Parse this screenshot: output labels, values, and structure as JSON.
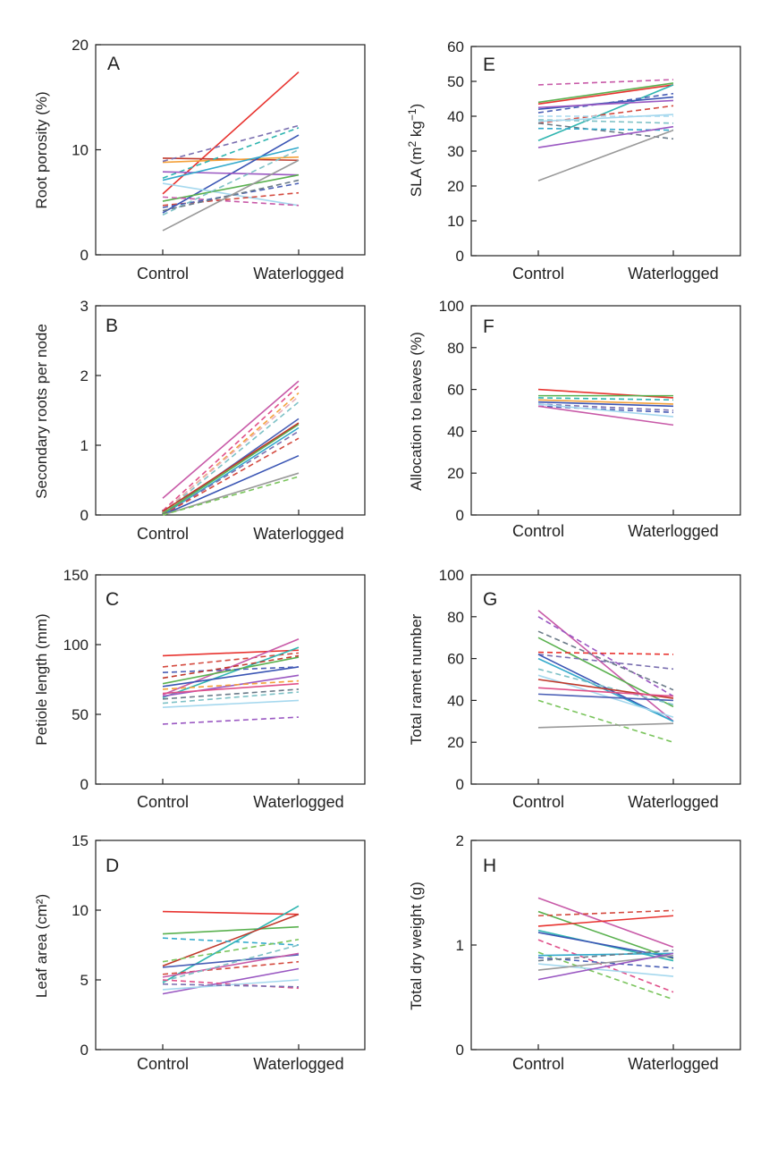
{
  "chart_data": [
    {
      "id": "A",
      "type": "line",
      "panel_label": "A",
      "ylabel": "Root porosity (%)",
      "categories": [
        "Control",
        "Waterlogged"
      ],
      "ylim": [
        0,
        20
      ],
      "yticks": [
        0,
        10,
        20
      ],
      "series": [
        {
          "color": "#e8332f",
          "dash": false,
          "values": [
            5.8,
            17.4
          ]
        },
        {
          "color": "#c0392b",
          "dash": false,
          "values": [
            9.2,
            9.0
          ]
        },
        {
          "color": "#f4a13a",
          "dash": false,
          "values": [
            8.8,
            9.3
          ]
        },
        {
          "color": "#7a6fb0",
          "dash": true,
          "values": [
            8.9,
            12.3
          ]
        },
        {
          "color": "#2fb5b0",
          "dash": true,
          "values": [
            7.3,
            12.1
          ]
        },
        {
          "color": "#3a55b4",
          "dash": false,
          "values": [
            4.0,
            11.4
          ]
        },
        {
          "color": "#9a58c2",
          "dash": false,
          "values": [
            7.9,
            7.6
          ]
        },
        {
          "color": "#33aacc",
          "dash": false,
          "values": [
            7.1,
            10.2
          ]
        },
        {
          "color": "#a5d8ee",
          "dash": false,
          "values": [
            6.8,
            4.7
          ]
        },
        {
          "color": "#5ab14f",
          "dash": false,
          "values": [
            5.1,
            7.6
          ]
        },
        {
          "color": "#c85aa8",
          "dash": true,
          "values": [
            5.5,
            4.7
          ]
        },
        {
          "color": "#d44a3f",
          "dash": true,
          "values": [
            4.7,
            5.9
          ]
        },
        {
          "color": "#4a5fb6",
          "dash": true,
          "values": [
            4.5,
            6.8
          ]
        },
        {
          "color": "#7dc1c6",
          "dash": true,
          "values": [
            3.8,
            10.0
          ]
        },
        {
          "color": "#6a7a88",
          "dash": true,
          "values": [
            4.2,
            7.1
          ]
        },
        {
          "color": "#999999",
          "dash": false,
          "values": [
            2.3,
            9.0
          ]
        }
      ]
    },
    {
      "id": "B",
      "type": "line",
      "panel_label": "B",
      "ylabel": "Secondary roots per node",
      "categories": [
        "Control",
        "Waterlogged"
      ],
      "ylim": [
        0,
        3
      ],
      "yticks": [
        0,
        1,
        2,
        3
      ],
      "series": [
        {
          "color": "#c85aa8",
          "dash": false,
          "values": [
            0.24,
            1.92
          ]
        },
        {
          "color": "#e0508a",
          "dash": true,
          "values": [
            0.06,
            1.85
          ]
        },
        {
          "color": "#f4a13a",
          "dash": true,
          "values": [
            0.03,
            1.75
          ]
        },
        {
          "color": "#e8b0ba",
          "dash": true,
          "values": [
            0.04,
            1.7
          ]
        },
        {
          "color": "#7dc1c6",
          "dash": true,
          "values": [
            0.02,
            1.62
          ]
        },
        {
          "color": "#4a5fb6",
          "dash": false,
          "values": [
            0.01,
            1.38
          ]
        },
        {
          "color": "#33aacc",
          "dash": false,
          "values": [
            0.0,
            1.25
          ]
        },
        {
          "color": "#5ab14f",
          "dash": false,
          "values": [
            0.02,
            1.3
          ]
        },
        {
          "color": "#c0392b",
          "dash": false,
          "values": [
            0.05,
            1.32
          ]
        },
        {
          "color": "#7a6fb0",
          "dash": true,
          "values": [
            0.0,
            1.2
          ]
        },
        {
          "color": "#d44a3f",
          "dash": true,
          "values": [
            0.0,
            1.1
          ]
        },
        {
          "color": "#3a55b4",
          "dash": false,
          "values": [
            0.0,
            0.85
          ]
        },
        {
          "color": "#999999",
          "dash": false,
          "values": [
            0.0,
            0.6
          ]
        },
        {
          "color": "#7ac45c",
          "dash": true,
          "values": [
            0.0,
            0.55
          ]
        }
      ]
    },
    {
      "id": "C",
      "type": "line",
      "panel_label": "C",
      "ylabel": "Petiole length (mm)",
      "categories": [
        "Control",
        "Waterlogged"
      ],
      "ylim": [
        0,
        150
      ],
      "yticks": [
        0,
        50,
        100,
        150
      ],
      "series": [
        {
          "color": "#e8332f",
          "dash": false,
          "values": [
            92,
            96
          ]
        },
        {
          "color": "#d44a3f",
          "dash": true,
          "values": [
            84,
            94
          ]
        },
        {
          "color": "#c85aa8",
          "dash": false,
          "values": [
            64,
            104
          ]
        },
        {
          "color": "#2fb5b0",
          "dash": false,
          "values": [
            62,
            98
          ]
        },
        {
          "color": "#5ab14f",
          "dash": false,
          "values": [
            72,
            91
          ]
        },
        {
          "color": "#3a55b4",
          "dash": false,
          "values": [
            70,
            84
          ]
        },
        {
          "color": "#4a5fb6",
          "dash": true,
          "values": [
            80,
            84
          ]
        },
        {
          "color": "#c0392b",
          "dash": true,
          "values": [
            76,
            92
          ]
        },
        {
          "color": "#9a58c2",
          "dash": false,
          "values": [
            63,
            78
          ]
        },
        {
          "color": "#e0508a",
          "dash": false,
          "values": [
            65,
            72
          ]
        },
        {
          "color": "#f4a13a",
          "dash": true,
          "values": [
            68,
            74
          ]
        },
        {
          "color": "#6a7a88",
          "dash": true,
          "values": [
            61,
            68
          ]
        },
        {
          "color": "#7dc1c6",
          "dash": true,
          "values": [
            58,
            66
          ]
        },
        {
          "color": "#a5d8ee",
          "dash": false,
          "values": [
            55,
            60
          ]
        },
        {
          "color": "#9a58c2",
          "dash": true,
          "values": [
            43,
            48
          ]
        }
      ]
    },
    {
      "id": "D",
      "type": "line",
      "panel_label": "D",
      "ylabel": "Leaf area (cm²)",
      "categories": [
        "Control",
        "Waterlogged"
      ],
      "ylim": [
        0,
        15
      ],
      "yticks": [
        0,
        5,
        10,
        15
      ],
      "series": [
        {
          "color": "#e8332f",
          "dash": false,
          "values": [
            9.9,
            9.7
          ]
        },
        {
          "color": "#5ab14f",
          "dash": false,
          "values": [
            8.3,
            8.8
          ]
        },
        {
          "color": "#2fb5b0",
          "dash": false,
          "values": [
            4.8,
            10.3
          ]
        },
        {
          "color": "#c0392b",
          "dash": false,
          "values": [
            6.0,
            9.7
          ]
        },
        {
          "color": "#33aacc",
          "dash": true,
          "values": [
            8.0,
            7.5
          ]
        },
        {
          "color": "#7ac45c",
          "dash": true,
          "values": [
            6.3,
            7.9
          ]
        },
        {
          "color": "#4a5fb6",
          "dash": false,
          "values": [
            5.9,
            6.8
          ]
        },
        {
          "color": "#d44a3f",
          "dash": true,
          "values": [
            5.4,
            6.3
          ]
        },
        {
          "color": "#c85aa8",
          "dash": false,
          "values": [
            5.2,
            6.9
          ]
        },
        {
          "color": "#7dc1c6",
          "dash": true,
          "values": [
            4.9,
            7.5
          ]
        },
        {
          "color": "#9a58c2",
          "dash": false,
          "values": [
            4.0,
            5.8
          ]
        },
        {
          "color": "#e0508a",
          "dash": true,
          "values": [
            5.0,
            4.4
          ]
        },
        {
          "color": "#a5d8ee",
          "dash": false,
          "values": [
            4.3,
            5.0
          ]
        },
        {
          "color": "#7a6fb0",
          "dash": true,
          "values": [
            4.7,
            4.5
          ]
        }
      ]
    },
    {
      "id": "E",
      "type": "line",
      "panel_label": "E",
      "ylabel_text": "SLA (m",
      "ylabel_sup1": "2",
      "ylabel_mid": " kg",
      "ylabel_sup2": "−1",
      "ylabel_end": ")",
      "categories": [
        "Control",
        "Waterlogged"
      ],
      "ylim": [
        0,
        60
      ],
      "yticks": [
        0,
        10,
        20,
        30,
        40,
        50,
        60
      ],
      "series": [
        {
          "color": "#c85aa8",
          "dash": true,
          "values": [
            49,
            50.5
          ]
        },
        {
          "color": "#5ab14f",
          "dash": false,
          "values": [
            44,
            49.5
          ]
        },
        {
          "color": "#e8332f",
          "dash": false,
          "values": [
            43.5,
            49
          ]
        },
        {
          "color": "#2fb5b0",
          "dash": false,
          "values": [
            33,
            49
          ]
        },
        {
          "color": "#3a55b4",
          "dash": false,
          "values": [
            42,
            45.5
          ]
        },
        {
          "color": "#4a5fb6",
          "dash": true,
          "values": [
            41,
            46.5
          ]
        },
        {
          "color": "#9a58c2",
          "dash": false,
          "values": [
            42.5,
            44.5
          ]
        },
        {
          "color": "#d44a3f",
          "dash": true,
          "values": [
            38,
            43
          ]
        },
        {
          "color": "#a5d8ee",
          "dash": true,
          "values": [
            40,
            40
          ]
        },
        {
          "color": "#7dc1c6",
          "dash": true,
          "values": [
            39,
            38
          ]
        },
        {
          "color": "#a5d8ee",
          "dash": false,
          "values": [
            38.5,
            40.5
          ]
        },
        {
          "color": "#6a7a88",
          "dash": true,
          "values": [
            38,
            33.5
          ]
        },
        {
          "color": "#33aacc",
          "dash": true,
          "values": [
            36.5,
            36
          ]
        },
        {
          "color": "#9a58c2",
          "dash": false,
          "values": [
            31,
            37
          ]
        },
        {
          "color": "#999999",
          "dash": false,
          "values": [
            21.5,
            36
          ]
        }
      ]
    },
    {
      "id": "F",
      "type": "line",
      "panel_label": "F",
      "ylabel": "Allocation to leaves (%)",
      "categories": [
        "Control",
        "Waterlogged"
      ],
      "ylim": [
        0,
        100
      ],
      "yticks": [
        0,
        20,
        40,
        60,
        80,
        100
      ],
      "series": [
        {
          "color": "#e8332f",
          "dash": false,
          "values": [
            60,
            56
          ]
        },
        {
          "color": "#5ab14f",
          "dash": false,
          "values": [
            57,
            57
          ]
        },
        {
          "color": "#2fb5b0",
          "dash": true,
          "values": [
            56,
            55
          ]
        },
        {
          "color": "#f4a13a",
          "dash": false,
          "values": [
            55,
            53
          ]
        },
        {
          "color": "#3a55b4",
          "dash": false,
          "values": [
            54,
            52
          ]
        },
        {
          "color": "#7a6fb0",
          "dash": true,
          "values": [
            53,
            50
          ]
        },
        {
          "color": "#4a5fb6",
          "dash": true,
          "values": [
            52,
            49
          ]
        },
        {
          "color": "#a5d8ee",
          "dash": false,
          "values": [
            53,
            47
          ]
        },
        {
          "color": "#c85aa8",
          "dash": false,
          "values": [
            52,
            43
          ]
        }
      ]
    },
    {
      "id": "G",
      "type": "line",
      "panel_label": "G",
      "ylabel": "Total ramet number",
      "categories": [
        "Control",
        "Waterlogged"
      ],
      "ylim": [
        0,
        100
      ],
      "yticks": [
        0,
        20,
        40,
        60,
        80,
        100
      ],
      "series": [
        {
          "color": "#c85aa8",
          "dash": false,
          "values": [
            83,
            30
          ]
        },
        {
          "color": "#9a58c2",
          "dash": true,
          "values": [
            80,
            42
          ]
        },
        {
          "color": "#6a7a88",
          "dash": true,
          "values": [
            73,
            45
          ]
        },
        {
          "color": "#5ab14f",
          "dash": false,
          "values": [
            70,
            37
          ]
        },
        {
          "color": "#e8332f",
          "dash": true,
          "values": [
            63,
            62
          ]
        },
        {
          "color": "#7a6fb0",
          "dash": true,
          "values": [
            62,
            55
          ]
        },
        {
          "color": "#3a55b4",
          "dash": false,
          "values": [
            62,
            30
          ]
        },
        {
          "color": "#33aacc",
          "dash": false,
          "values": [
            60,
            30
          ]
        },
        {
          "color": "#7dc1c6",
          "dash": true,
          "values": [
            55,
            38
          ]
        },
        {
          "color": "#a5d8ee",
          "dash": false,
          "values": [
            52,
            32
          ]
        },
        {
          "color": "#c0392b",
          "dash": false,
          "values": [
            50,
            41
          ]
        },
        {
          "color": "#e0508a",
          "dash": false,
          "values": [
            46,
            42
          ]
        },
        {
          "color": "#4a5fb6",
          "dash": false,
          "values": [
            43,
            40
          ]
        },
        {
          "color": "#7ac45c",
          "dash": true,
          "values": [
            40,
            20
          ]
        },
        {
          "color": "#999999",
          "dash": false,
          "values": [
            27,
            29
          ]
        }
      ]
    },
    {
      "id": "H",
      "type": "line",
      "panel_label": "H",
      "ylabel": "Total dry weight (g)",
      "categories": [
        "Control",
        "Waterlogged"
      ],
      "ylim": [
        0,
        2
      ],
      "yticks": [
        0,
        1,
        2
      ],
      "series": [
        {
          "color": "#c85aa8",
          "dash": false,
          "values": [
            1.45,
            0.98
          ]
        },
        {
          "color": "#5ab14f",
          "dash": false,
          "values": [
            1.32,
            0.87
          ]
        },
        {
          "color": "#d44a3f",
          "dash": true,
          "values": [
            1.28,
            1.33
          ]
        },
        {
          "color": "#e8332f",
          "dash": false,
          "values": [
            1.18,
            1.28
          ]
        },
        {
          "color": "#2fb5b0",
          "dash": false,
          "values": [
            1.14,
            0.85
          ]
        },
        {
          "color": "#3a55b4",
          "dash": false,
          "values": [
            1.12,
            0.88
          ]
        },
        {
          "color": "#e0508a",
          "dash": true,
          "values": [
            1.05,
            0.55
          ]
        },
        {
          "color": "#7ac45c",
          "dash": true,
          "values": [
            0.93,
            0.48
          ]
        },
        {
          "color": "#33aacc",
          "dash": false,
          "values": [
            0.9,
            0.92
          ]
        },
        {
          "color": "#4a5fb6",
          "dash": true,
          "values": [
            0.88,
            0.78
          ]
        },
        {
          "color": "#6a7a88",
          "dash": true,
          "values": [
            0.85,
            0.95
          ]
        },
        {
          "color": "#a5d8ee",
          "dash": false,
          "values": [
            0.82,
            0.7
          ]
        },
        {
          "color": "#999999",
          "dash": false,
          "values": [
            0.76,
            0.9
          ]
        },
        {
          "color": "#9a58c2",
          "dash": false,
          "values": [
            0.67,
            0.92
          ]
        }
      ]
    }
  ]
}
